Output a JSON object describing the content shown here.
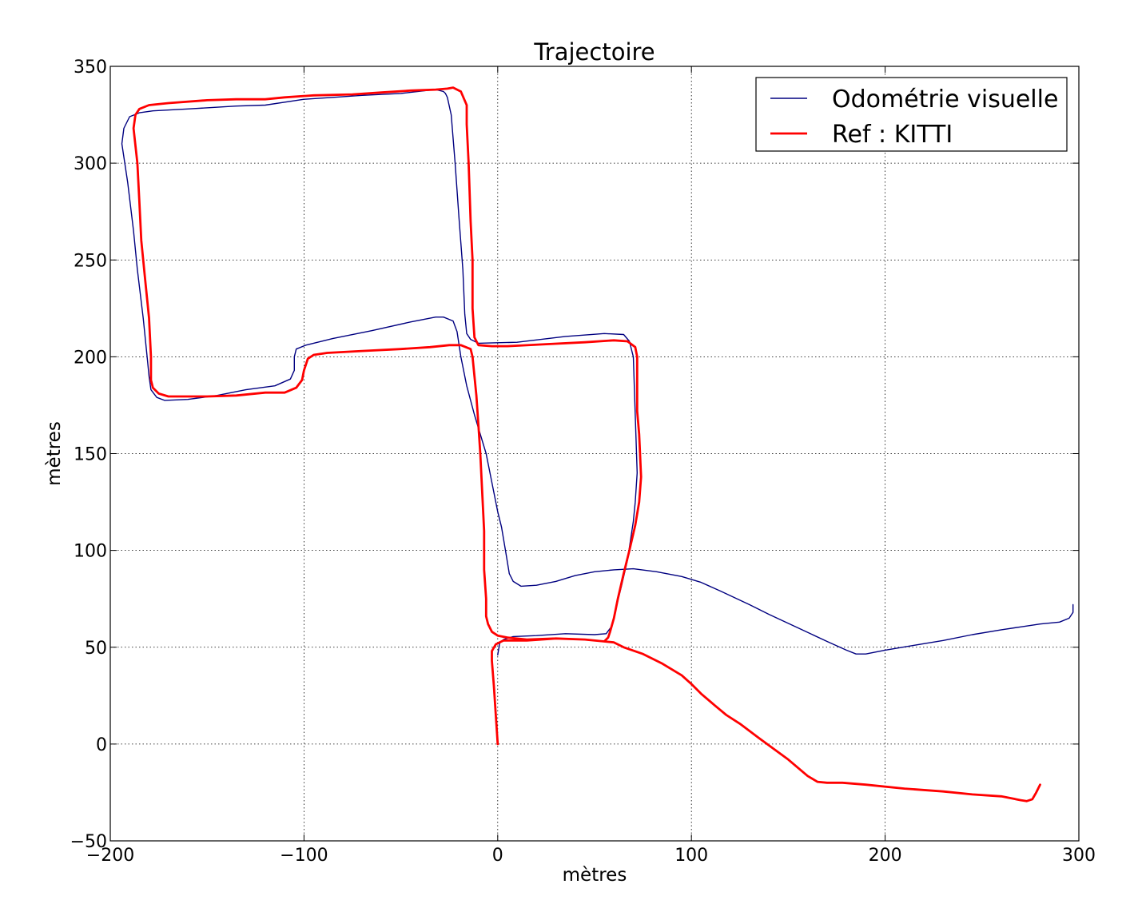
{
  "chart_data": {
    "type": "line",
    "title": "Trajectoire",
    "xlabel": "mètres",
    "ylabel": "mètres",
    "xlim": [
      -200,
      300
    ],
    "ylim": [
      -50,
      350
    ],
    "xticks": [
      -200,
      -100,
      0,
      100,
      200,
      300
    ],
    "yticks": [
      -50,
      0,
      50,
      100,
      150,
      200,
      250,
      300,
      350
    ],
    "xtick_labels": [
      "−200",
      "−100",
      "0",
      "100",
      "200",
      "300"
    ],
    "ytick_labels": [
      "−50",
      "0",
      "50",
      "100",
      "150",
      "200",
      "250",
      "300",
      "350"
    ],
    "grid": true,
    "legend_position": "top-right",
    "series": [
      {
        "name": "Odométrie visuelle",
        "color": "#000080",
        "points": [
          [
            0,
            46
          ],
          [
            1,
            52
          ],
          [
            3,
            54
          ],
          [
            8,
            55.5
          ],
          [
            20,
            56
          ],
          [
            35,
            57
          ],
          [
            50,
            56.5
          ],
          [
            56,
            57
          ],
          [
            59,
            61
          ],
          [
            61,
            70
          ],
          [
            64,
            82
          ],
          [
            67,
            95
          ],
          [
            70,
            115
          ],
          [
            71,
            125
          ],
          [
            72,
            140
          ],
          [
            71,
            170
          ],
          [
            70,
            200
          ],
          [
            68,
            208
          ],
          [
            65,
            211.5
          ],
          [
            55,
            212
          ],
          [
            35,
            210.5
          ],
          [
            10,
            207.5
          ],
          [
            -10,
            207
          ],
          [
            -14,
            209
          ],
          [
            -16,
            212
          ],
          [
            -17,
            222
          ],
          [
            -18,
            245
          ],
          [
            -20,
            272
          ],
          [
            -22,
            300
          ],
          [
            -24,
            325
          ],
          [
            -26,
            334
          ],
          [
            -27,
            336
          ],
          [
            -28,
            337
          ],
          [
            -32,
            338
          ],
          [
            -37,
            337.5
          ],
          [
            -50,
            336
          ],
          [
            -70,
            335
          ],
          [
            -85,
            334
          ],
          [
            -100,
            333
          ],
          [
            -120,
            330
          ],
          [
            -135,
            329.5
          ],
          [
            -160,
            328
          ],
          [
            -178,
            327
          ],
          [
            -185,
            326
          ],
          [
            -190,
            324
          ],
          [
            -193,
            318
          ],
          [
            -194,
            310
          ],
          [
            -191,
            290
          ],
          [
            -188,
            265
          ],
          [
            -186,
            245
          ],
          [
            -183,
            220
          ],
          [
            -181,
            200
          ],
          [
            -180,
            190
          ],
          [
            -179,
            183
          ],
          [
            -176,
            179
          ],
          [
            -172,
            177.5
          ],
          [
            -160,
            178
          ],
          [
            -145,
            180
          ],
          [
            -130,
            183
          ],
          [
            -115,
            185
          ],
          [
            -107,
            188.5
          ],
          [
            -105,
            193
          ],
          [
            -105,
            200
          ],
          [
            -104,
            204
          ],
          [
            -99,
            206
          ],
          [
            -85,
            209.5
          ],
          [
            -65,
            213.5
          ],
          [
            -45,
            218
          ],
          [
            -32,
            220.5
          ],
          [
            -28,
            220.5
          ],
          [
            -23,
            218.5
          ],
          [
            -21,
            213
          ],
          [
            -19,
            200
          ],
          [
            -16,
            185
          ],
          [
            -12,
            170
          ],
          [
            -6,
            150
          ],
          [
            0,
            120
          ],
          [
            2,
            112
          ],
          [
            4,
            100
          ],
          [
            6,
            88
          ],
          [
            8,
            84
          ],
          [
            12,
            81.5
          ],
          [
            20,
            82
          ],
          [
            30,
            84
          ],
          [
            40,
            87
          ],
          [
            50,
            89
          ],
          [
            60,
            90
          ],
          [
            70,
            90.5
          ],
          [
            82,
            89
          ],
          [
            95,
            86.5
          ],
          [
            105,
            83.5
          ],
          [
            115,
            79
          ],
          [
            130,
            72
          ],
          [
            140,
            67
          ],
          [
            155,
            60
          ],
          [
            170,
            53
          ],
          [
            180,
            48.5
          ],
          [
            185,
            46.5
          ],
          [
            190,
            46.5
          ],
          [
            200,
            48.5
          ],
          [
            215,
            51
          ],
          [
            230,
            53.5
          ],
          [
            245,
            56.5
          ],
          [
            260,
            59
          ],
          [
            270,
            60.5
          ],
          [
            280,
            62
          ],
          [
            290,
            63
          ],
          [
            295,
            65
          ],
          [
            297,
            68
          ],
          [
            297,
            72
          ]
        ]
      },
      {
        "name": "Ref : KITTI",
        "color": "#ff0000",
        "points": [
          [
            0,
            0
          ],
          [
            -1,
            15
          ],
          [
            -2,
            30
          ],
          [
            -3,
            43
          ],
          [
            -3,
            48
          ],
          [
            -1,
            51.5
          ],
          [
            3,
            53.5
          ],
          [
            15,
            53.5
          ],
          [
            30,
            54
          ],
          [
            45,
            53.5
          ],
          [
            55,
            53
          ],
          [
            65,
            50
          ],
          [
            75,
            46.5
          ],
          [
            85,
            41.5
          ],
          [
            95,
            35.5
          ],
          [
            100,
            31
          ],
          [
            105,
            26
          ],
          [
            112,
            20
          ],
          [
            118,
            15
          ],
          [
            125,
            10.5
          ],
          [
            135,
            3
          ],
          [
            150,
            -8
          ],
          [
            160,
            -16.5
          ],
          [
            165,
            -19.5
          ],
          [
            170,
            -20
          ],
          [
            178,
            -20
          ],
          [
            190,
            -21
          ],
          [
            210,
            -23
          ],
          [
            230,
            -24.5
          ],
          [
            245,
            -26
          ],
          [
            260,
            -27
          ],
          [
            270,
            -29
          ],
          [
            275,
            -29
          ],
          [
            277,
            -28
          ],
          [
            278,
            -25
          ],
          [
            280,
            -21
          ],
          [
            278,
            -25
          ],
          [
            277,
            -28
          ],
          [
            275,
            -29
          ],
          [
            272,
            -29.5
          ],
          [
            262,
            -27.5
          ],
          [
            258,
            -27
          ],
          [
            260,
            -27
          ],
          [
            275,
            -29
          ],
          [
            280,
            -21
          ],
          [
            280,
            -21
          ]
        ],
        "main_loop": [
          [
            0,
            0
          ],
          [
            -1,
            15
          ],
          [
            -2,
            30
          ],
          [
            -3,
            43
          ],
          [
            -3,
            48
          ],
          [
            -1,
            51.5
          ],
          [
            3,
            53.5
          ],
          [
            15,
            53.5
          ],
          [
            30,
            54.5
          ],
          [
            45,
            54
          ],
          [
            55,
            53
          ],
          [
            57,
            55
          ],
          [
            58,
            58
          ],
          [
            60,
            65
          ],
          [
            62,
            75
          ],
          [
            65,
            88
          ],
          [
            68,
            100
          ],
          [
            71,
            113
          ],
          [
            73,
            125
          ],
          [
            74,
            138
          ],
          [
            73,
            160
          ],
          [
            72,
            172
          ],
          [
            72,
            190
          ],
          [
            72,
            200
          ],
          [
            71,
            205
          ],
          [
            67,
            208
          ],
          [
            60,
            208.5
          ],
          [
            45,
            207.5
          ],
          [
            25,
            206.5
          ],
          [
            5,
            205.5
          ],
          [
            -3,
            205.5
          ],
          [
            -10,
            206
          ],
          [
            -12,
            210
          ],
          [
            -13,
            225
          ],
          [
            -13,
            250
          ],
          [
            -14,
            270
          ],
          [
            -15,
            300
          ],
          [
            -16,
            320
          ],
          [
            -16,
            330
          ],
          [
            -19,
            337
          ],
          [
            -23,
            339
          ],
          [
            -26,
            338.5
          ],
          [
            -32,
            338
          ],
          [
            -45,
            337.5
          ],
          [
            -60,
            336.5
          ],
          [
            -75,
            335.5
          ],
          [
            -95,
            335
          ],
          [
            -110,
            334
          ],
          [
            -120,
            333
          ],
          [
            -135,
            333
          ],
          [
            -150,
            332.5
          ],
          [
            -170,
            331
          ],
          [
            -180,
            330
          ],
          [
            -185,
            328
          ],
          [
            -187,
            325
          ],
          [
            -188,
            318
          ],
          [
            -186,
            300
          ],
          [
            -185,
            280
          ],
          [
            -184,
            260
          ],
          [
            -182,
            240
          ],
          [
            -180,
            220
          ],
          [
            -179,
            200
          ],
          [
            -179,
            188
          ],
          [
            -178,
            184
          ],
          [
            -175,
            181
          ],
          [
            -170,
            179.5
          ],
          [
            -150,
            179.5
          ],
          [
            -135,
            180
          ],
          [
            -120,
            181.5
          ],
          [
            -110,
            181.5
          ],
          [
            -104,
            184
          ],
          [
            -101,
            188
          ],
          [
            -100,
            193
          ],
          [
            -98,
            199
          ],
          [
            -95,
            201
          ],
          [
            -88,
            202
          ],
          [
            -70,
            203
          ],
          [
            -50,
            204
          ],
          [
            -35,
            205
          ],
          [
            -25,
            206
          ],
          [
            -19,
            206
          ],
          [
            -14,
            204
          ],
          [
            -13,
            200
          ],
          [
            -12,
            190
          ],
          [
            -11,
            180
          ],
          [
            -10,
            165
          ],
          [
            -9,
            150
          ],
          [
            -8,
            130
          ],
          [
            -7,
            110
          ],
          [
            -7,
            90
          ],
          [
            -6,
            75
          ],
          [
            -6,
            66
          ],
          [
            -5,
            62
          ],
          [
            -3,
            58
          ],
          [
            0,
            56
          ],
          [
            5,
            55
          ],
          [
            15,
            54
          ],
          [
            30,
            54.5
          ],
          [
            45,
            54
          ],
          [
            55,
            53
          ],
          [
            60,
            52.5
          ],
          [
            65,
            50
          ],
          [
            75,
            46.5
          ],
          [
            85,
            41.5
          ],
          [
            95,
            35.5
          ],
          [
            100,
            31
          ],
          [
            105,
            26
          ],
          [
            112,
            20
          ],
          [
            118,
            15
          ],
          [
            125,
            10.5
          ],
          [
            135,
            3
          ],
          [
            150,
            -8
          ],
          [
            160,
            -16.5
          ],
          [
            165,
            -19.5
          ],
          [
            170,
            -20
          ],
          [
            178,
            -20
          ],
          [
            190,
            -21
          ],
          [
            210,
            -23
          ],
          [
            230,
            -24.5
          ],
          [
            245,
            -26
          ],
          [
            260,
            -27
          ],
          [
            270,
            -29
          ],
          [
            273,
            -29.5
          ],
          [
            276,
            -28.5
          ],
          [
            278,
            -25
          ],
          [
            280,
            -21
          ]
        ]
      }
    ]
  }
}
